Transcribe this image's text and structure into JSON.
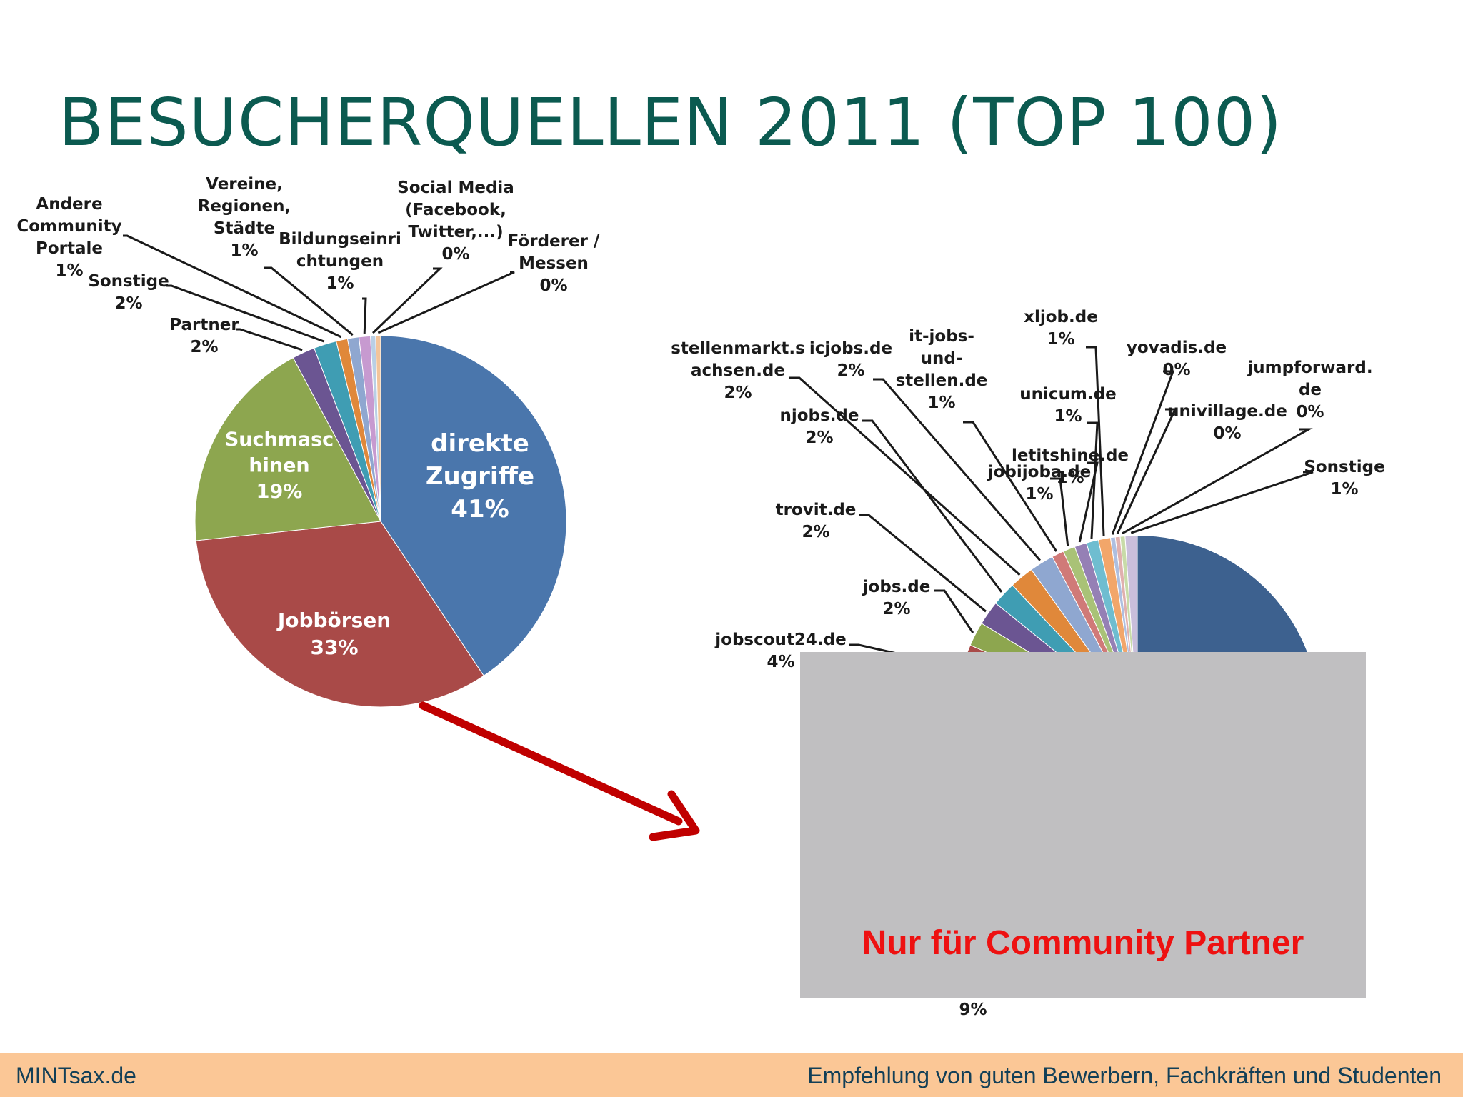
{
  "slide": {
    "title": "BESUCHERQUELLEN 2011 (TOP 100)",
    "footer_left": "MINTsax.de",
    "footer_right": "Empfehlung von guten Bewerbern, Fachkräften und Studenten",
    "overlay_text": "Nur für Community Partner",
    "hidden_value_label": "9%"
  },
  "colors": {
    "title": "#0b5a50",
    "arrow": "#c00000",
    "overlay": "#c0bfc1",
    "overlay_text": "#ee1111",
    "footer_bg": "#fbc796"
  },
  "chart_data": [
    {
      "type": "pie",
      "title": "",
      "slices": [
        {
          "label": "direkte Zugriffe",
          "value": 41,
          "value_label": "41%",
          "color": "#4a76ac"
        },
        {
          "label": "Jobbörsen",
          "value": 33,
          "value_label": "33%",
          "color": "#a94a48"
        },
        {
          "label": "Suchmaschinen",
          "value": 19,
          "value_label": "19%",
          "color": "#8da64f"
        },
        {
          "label": "Partner",
          "value": 2,
          "value_label": "2%",
          "color": "#6b5592"
        },
        {
          "label": "Sonstige",
          "value": 2,
          "value_label": "2%",
          "color": "#3f9db3"
        },
        {
          "label": "Andere Community Portale",
          "value": 1,
          "value_label": "1%",
          "color": "#e0883a"
        },
        {
          "label": "Vereine, Regionen, Städte",
          "value": 1,
          "value_label": "1%",
          "color": "#8fa7d0"
        },
        {
          "label": "Bildungseinrichtungen",
          "value": 1,
          "value_label": "1%",
          "color": "#c79ad0"
        },
        {
          "label": "Social Media (Facebook, Twitter,...)",
          "value": 0,
          "value_label": "0%",
          "color": "#b9cfe5"
        },
        {
          "label": "Förderer / Messen",
          "value": 0,
          "value_label": "0%",
          "color": "#f2c49a"
        }
      ],
      "labels_shown": [
        {
          "lines": [
            "direkte",
            "Zugriffe",
            "41%"
          ]
        },
        {
          "lines": [
            "Jobbörsen",
            "33%"
          ]
        },
        {
          "lines": [
            "Suchmasc",
            "hinen",
            "19%"
          ]
        },
        {
          "lines": [
            "Partner",
            "2%"
          ]
        },
        {
          "lines": [
            "Sonstige",
            "2%"
          ]
        },
        {
          "lines": [
            "Andere",
            "Community",
            "Portale",
            "1%"
          ]
        },
        {
          "lines": [
            "Vereine,",
            "Regionen,",
            "Städte",
            "1%"
          ]
        },
        {
          "lines": [
            "Bildungseinri",
            "chtungen",
            "1%"
          ]
        },
        {
          "lines": [
            "Social Media",
            "(Facebook,",
            "Twitter,...)",
            "0%"
          ]
        },
        {
          "lines": [
            "Förderer /",
            "Messen",
            "0%"
          ]
        }
      ]
    },
    {
      "type": "pie",
      "title": "",
      "note": "Jobbörsen breakdown, largely covered by overlay",
      "slices_visible": [
        {
          "label": "jobscout24.de",
          "value": 4,
          "value_label": "4%",
          "color": "#a94a48"
        },
        {
          "label": "jobs.de",
          "value": 2,
          "value_label": "2%",
          "color": "#8da64f"
        },
        {
          "label": "trovit.de",
          "value": 2,
          "value_label": "2%",
          "color": "#6b5592"
        },
        {
          "label": "njobs.de",
          "value": 2,
          "value_label": "2%",
          "color": "#3f9db3"
        },
        {
          "label": "stellenmarkt.sachsen.de",
          "value": 2,
          "value_label": "2%",
          "color": "#e0883a"
        },
        {
          "label": "icjobs.de",
          "value": 2,
          "value_label": "2%",
          "color": "#8fa7d0"
        },
        {
          "label": "it-jobs-und-stellen.de",
          "value": 1,
          "value_label": "1%",
          "color": "#d07a78"
        },
        {
          "label": "jobijoba.de",
          "value": 1,
          "value_label": "1%",
          "color": "#a9c277"
        },
        {
          "label": "letitshine.de",
          "value": 1,
          "value_label": "1%",
          "color": "#9580b5"
        },
        {
          "label": "unicum.de",
          "value": 1,
          "value_label": "1%",
          "color": "#6fbdd0"
        },
        {
          "label": "xljob.de",
          "value": 1,
          "value_label": "1%",
          "color": "#f2a66a"
        },
        {
          "label": "yovadis.de",
          "value": 0,
          "value_label": "0%",
          "color": "#aebfe0"
        },
        {
          "label": "univillage.de",
          "value": 0,
          "value_label": "0%",
          "color": "#e0b0ae"
        },
        {
          "label": "jumpforward.de",
          "value": 0,
          "value_label": "0%",
          "color": "#c8dba8"
        },
        {
          "label": "Sonstige",
          "value": 1,
          "value_label": "1%",
          "color": "#c9bedb"
        }
      ],
      "labels_shown": [
        {
          "lines": [
            "jobscout24.de",
            "4%"
          ]
        },
        {
          "lines": [
            "jobs.de",
            "2%"
          ]
        },
        {
          "lines": [
            "trovit.de",
            "2%"
          ]
        },
        {
          "lines": [
            "njobs.de",
            "2%"
          ]
        },
        {
          "lines": [
            "stellenmarkt.s",
            "achsen.de",
            "2%"
          ]
        },
        {
          "lines": [
            "icjobs.de",
            "2%"
          ]
        },
        {
          "lines": [
            "it-jobs-",
            "und-",
            "stellen.de",
            "1%"
          ]
        },
        {
          "lines": [
            "jobijoba.de",
            "1%"
          ]
        },
        {
          "lines": [
            "letitshine.de",
            "1%"
          ]
        },
        {
          "lines": [
            "unicum.de",
            "1%"
          ]
        },
        {
          "lines": [
            "xljob.de",
            "1%"
          ]
        },
        {
          "lines": [
            "yovadis.de",
            "0%"
          ]
        },
        {
          "lines": [
            "univillage.de",
            "0%"
          ]
        },
        {
          "lines": [
            "jumpforward.",
            "de",
            "0%"
          ]
        },
        {
          "lines": [
            "Sonstige",
            "1%"
          ]
        }
      ]
    }
  ]
}
